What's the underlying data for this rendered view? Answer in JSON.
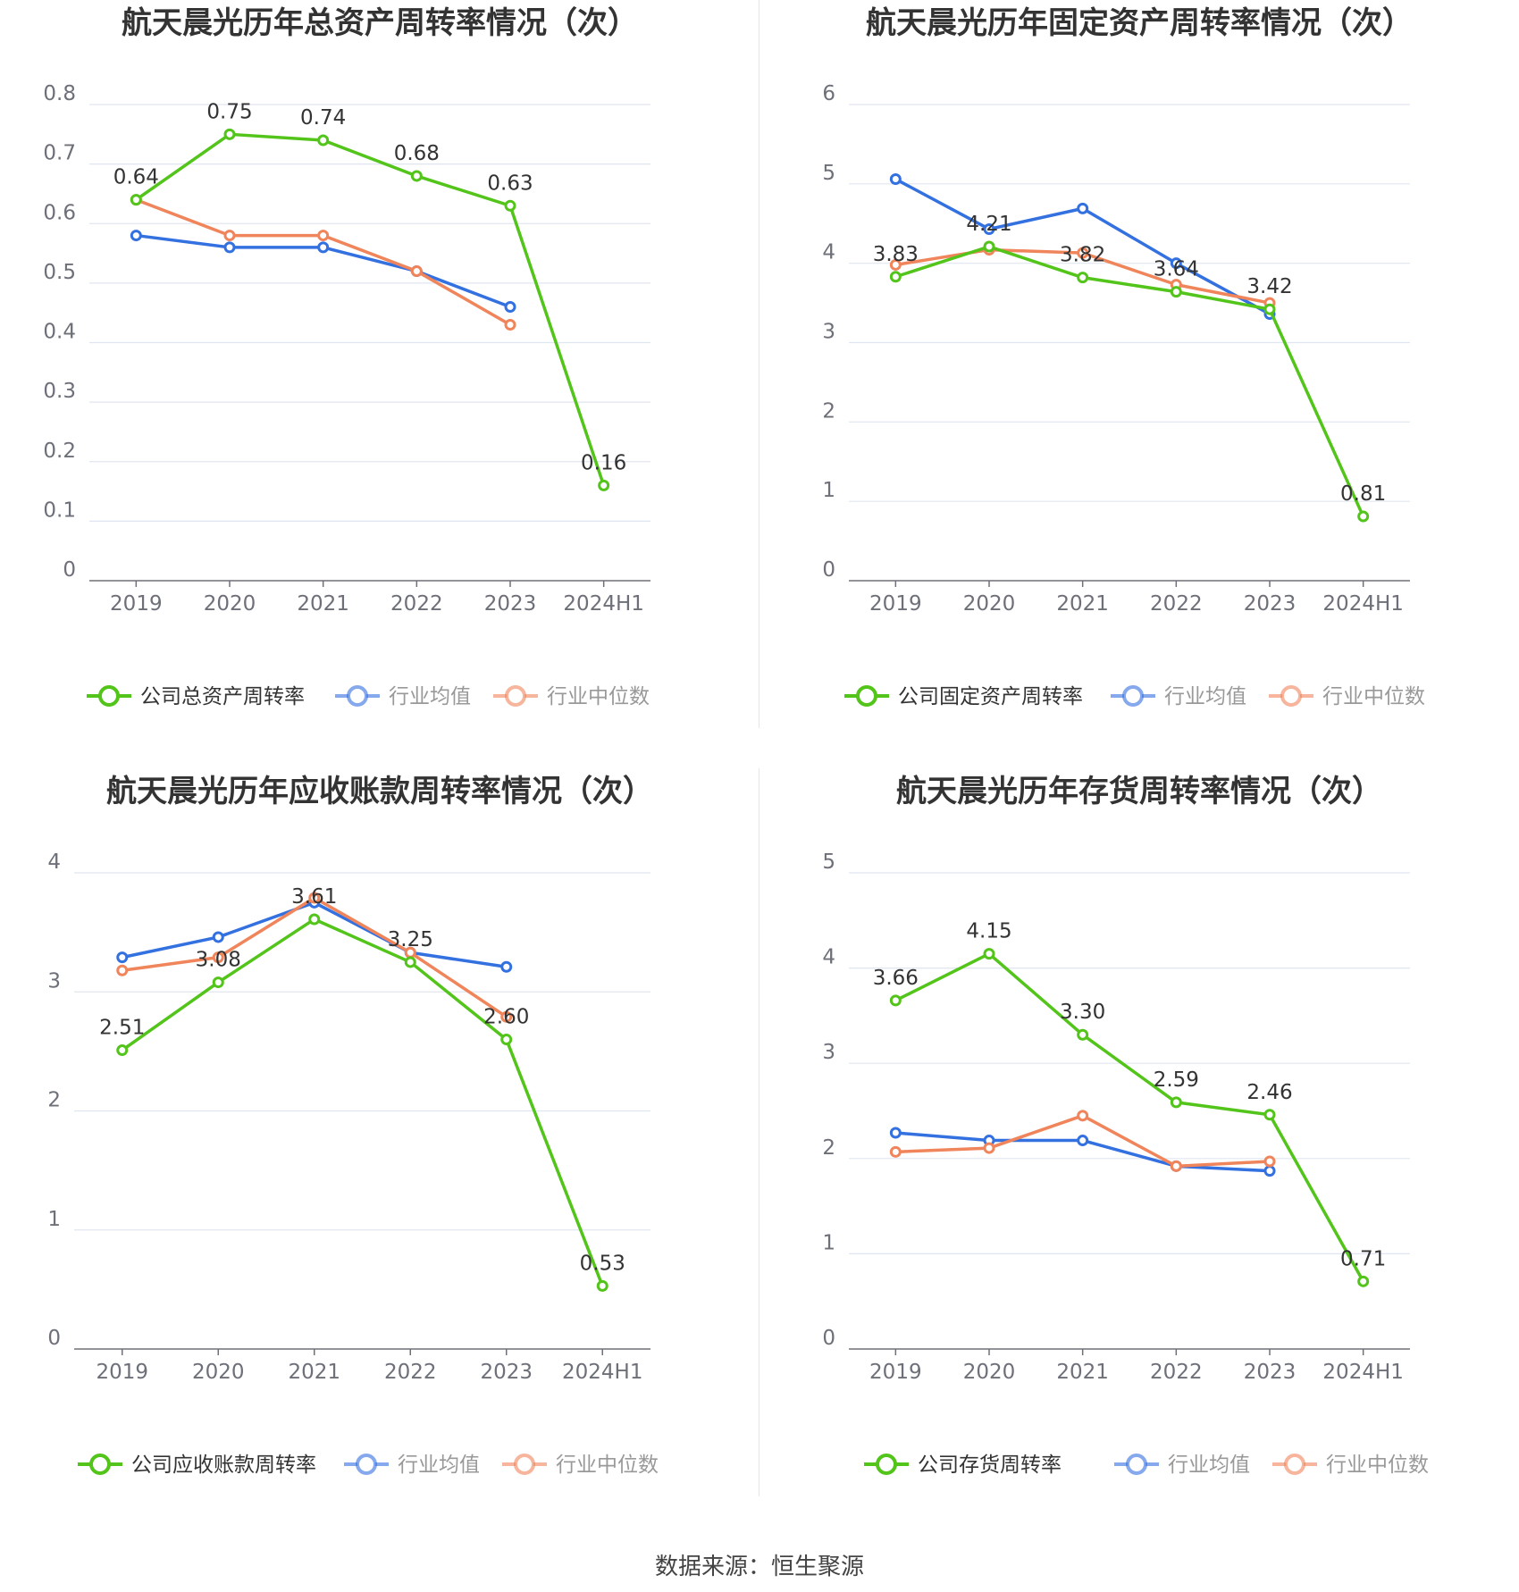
{
  "source": "数据来源：恒生聚源",
  "colors": {
    "company": "#52c41a",
    "industry_avg": "#3370e0",
    "industry_median": "#f0845a"
  },
  "chart_data": [
    {
      "type": "line",
      "title": "航天晨光历年总资产周转率情况（次）",
      "x": [
        "2019",
        "2020",
        "2021",
        "2022",
        "2023",
        "2024H1"
      ],
      "yticks": [
        "0",
        "0.1",
        "0.2",
        "0.3",
        "0.4",
        "0.5",
        "0.6",
        "0.7",
        "0.8"
      ],
      "ylim": [
        0,
        0.8
      ],
      "series": [
        {
          "name": "公司总资产周转率",
          "values": [
            0.64,
            0.75,
            0.74,
            0.68,
            0.63,
            0.16
          ],
          "labels": [
            "0.64",
            "0.75",
            "0.74",
            "0.68",
            "0.63",
            "0.16"
          ]
        },
        {
          "name": "行业均值",
          "values": [
            0.58,
            0.56,
            0.56,
            0.52,
            0.46,
            null
          ]
        },
        {
          "name": "行业中位数",
          "values": [
            0.64,
            0.58,
            0.58,
            0.52,
            0.43,
            null
          ]
        }
      ]
    },
    {
      "type": "line",
      "title": "航天晨光历年固定资产周转率情况（次）",
      "x": [
        "2019",
        "2020",
        "2021",
        "2022",
        "2023",
        "2024H1"
      ],
      "yticks": [
        "0",
        "1",
        "2",
        "3",
        "4",
        "5",
        "6"
      ],
      "ylim": [
        0,
        6
      ],
      "series": [
        {
          "name": "公司固定资产周转率",
          "values": [
            3.83,
            4.21,
            3.82,
            3.64,
            3.42,
            0.81
          ],
          "labels": [
            "3.83",
            "4.21",
            "3.82",
            "3.64",
            "3.42",
            "0.81"
          ]
        },
        {
          "name": "行业均值",
          "values": [
            5.06,
            4.43,
            4.69,
            4.0,
            3.36,
            null
          ]
        },
        {
          "name": "行业中位数",
          "values": [
            3.98,
            4.17,
            4.13,
            3.73,
            3.5,
            null
          ]
        }
      ]
    },
    {
      "type": "line",
      "title": "航天晨光历年应收账款周转率情况（次）",
      "x": [
        "2019",
        "2020",
        "2021",
        "2022",
        "2023",
        "2024H1"
      ],
      "yticks": [
        "0",
        "1",
        "2",
        "3",
        "4"
      ],
      "ylim": [
        0,
        4
      ],
      "series": [
        {
          "name": "公司应收账款周转率",
          "values": [
            2.51,
            3.08,
            3.61,
            3.25,
            2.6,
            0.53
          ],
          "labels": [
            "2.51",
            "3.08",
            "3.61",
            "3.25",
            "2.60",
            "0.53"
          ]
        },
        {
          "name": "行业均值",
          "values": [
            3.29,
            3.46,
            3.75,
            3.33,
            3.21,
            null
          ]
        },
        {
          "name": "行业中位数",
          "values": [
            3.18,
            3.29,
            3.79,
            3.33,
            2.79,
            null
          ]
        }
      ]
    },
    {
      "type": "line",
      "title": "航天晨光历年存货周转率情况（次）",
      "x": [
        "2019",
        "2020",
        "2021",
        "2022",
        "2023",
        "2024H1"
      ],
      "yticks": [
        "0",
        "1",
        "2",
        "3",
        "4",
        "5"
      ],
      "ylim": [
        0,
        5
      ],
      "series": [
        {
          "name": "公司存货周转率",
          "values": [
            3.66,
            4.15,
            3.3,
            2.59,
            2.46,
            0.71
          ],
          "labels": [
            "3.66",
            "4.15",
            "3.30",
            "2.59",
            "2.46",
            "0.71"
          ]
        },
        {
          "name": "行业均值",
          "values": [
            2.27,
            2.19,
            2.19,
            1.92,
            1.87,
            null
          ]
        },
        {
          "name": "行业中位数",
          "values": [
            2.07,
            2.11,
            2.45,
            1.92,
            1.97,
            null
          ]
        }
      ]
    }
  ]
}
